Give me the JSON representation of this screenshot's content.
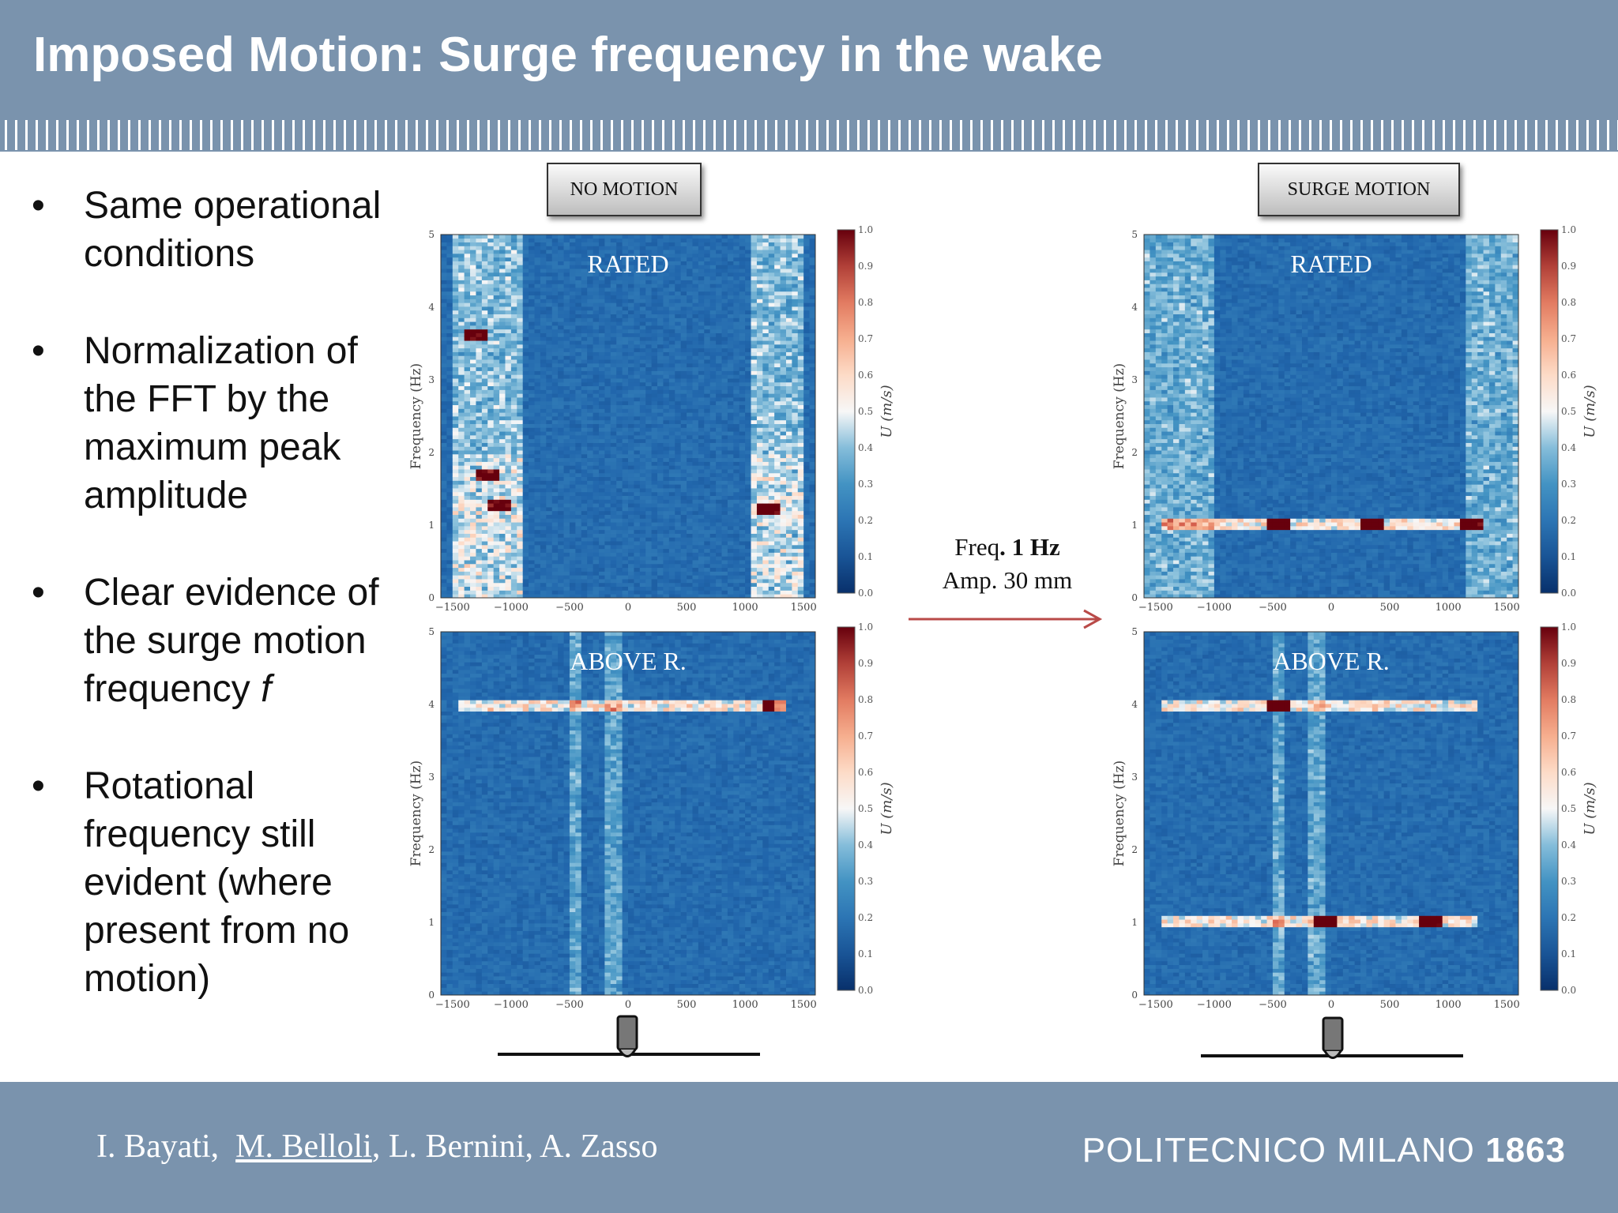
{
  "slide": {
    "title": "Imposed Motion: Surge frequency in the wake",
    "bullets": [
      {
        "text": "Same operational conditions"
      },
      {
        "text": "Normalization of the FFT by the maximum peak amplitude"
      },
      {
        "text": "Clear evidence of the surge motion frequency ",
        "italic": "f"
      },
      {
        "text": "Rotational frequency still evident (where present from no motion)"
      }
    ],
    "motion_labels": {
      "left": "NO MOTION",
      "right": "SURGE MOTION"
    },
    "arrow_text": {
      "line1_pre": "Freq",
      "line1_bold": ". 1 Hz",
      "line2": "Amp. 30 mm"
    },
    "footer": {
      "author1": "I. Bayati,",
      "author2": "M. Belloli",
      "author_rest": ", L. Bernini, A. Zasso",
      "logo_word": "POLITECNICO MILANO",
      "logo_year": "1863"
    },
    "colors": {
      "header": "#7a93ad",
      "arrow": "#b94a48"
    }
  },
  "chart_data": [
    {
      "type": "heatmap",
      "id": "no-motion-rated",
      "title": "RATED",
      "xlabel": "",
      "ylabel": "Frequency (Hz)",
      "colorbar_label": "U (m/s)",
      "xlim": [
        -1600,
        1600
      ],
      "ylim": [
        0,
        5
      ],
      "xticks": [
        "−1500",
        "−1000",
        "−500",
        "0",
        "500",
        "1000",
        "1500"
      ],
      "yticks": [
        "0",
        "1",
        "2",
        "3",
        "4",
        "5"
      ],
      "cticks": [
        "0.0",
        "0.1",
        "0.2",
        "0.3",
        "0.4",
        "0.5",
        "0.6",
        "0.7",
        "0.8",
        "0.9",
        "1.0"
      ],
      "clim": [
        0,
        1
      ],
      "high_bands_x": [
        [
          -1500,
          -900
        ],
        [
          1050,
          1500
        ]
      ],
      "peaks": [
        [
          -1300,
          3.6
        ],
        [
          -1200,
          1.7
        ],
        [
          -1100,
          1.3
        ],
        [
          1200,
          1.2
        ]
      ]
    },
    {
      "type": "heatmap",
      "id": "no-motion-above",
      "title": "ABOVE R.",
      "xlabel": "",
      "ylabel": "Frequency (Hz)",
      "colorbar_label": "U (m/s)",
      "xlim": [
        -1600,
        1600
      ],
      "ylim": [
        0,
        5
      ],
      "xticks": [
        "−1500",
        "−1000",
        "−500",
        "0",
        "500",
        "1000",
        "1500"
      ],
      "yticks": [
        "0",
        "1",
        "2",
        "3",
        "4",
        "5"
      ],
      "cticks": [
        "0.0",
        "0.1",
        "0.2",
        "0.3",
        "0.4",
        "0.5",
        "0.6",
        "0.7",
        "0.8",
        "0.9",
        "1.0"
      ],
      "clim": [
        0,
        1
      ],
      "line_frequency": 4.0,
      "peaks": [
        [
          1250,
          4.0
        ]
      ]
    },
    {
      "type": "heatmap",
      "id": "surge-rated",
      "title": "RATED",
      "xlabel": "",
      "ylabel": "Frequency (Hz)",
      "colorbar_label": "U (m/s)",
      "xlim": [
        -1600,
        1600
      ],
      "ylim": [
        0,
        5
      ],
      "xticks": [
        "−1500",
        "−1000",
        "−500",
        "0",
        "500",
        "1000",
        "1500"
      ],
      "yticks": [
        "0",
        "1",
        "2",
        "3",
        "4",
        "5"
      ],
      "cticks": [
        "0.0",
        "0.1",
        "0.2",
        "0.3",
        "0.4",
        "0.5",
        "0.6",
        "0.7",
        "0.8",
        "0.9",
        "1.0"
      ],
      "clim": [
        0,
        1
      ],
      "line_frequency": 1.0,
      "peaks": [
        [
          -450,
          1.0
        ],
        [
          350,
          1.0
        ],
        [
          1200,
          1.0
        ]
      ]
    },
    {
      "type": "heatmap",
      "id": "surge-above",
      "title": "ABOVE R.",
      "xlabel": "",
      "ylabel": "Frequency (Hz)",
      "colorbar_label": "U (m/s)",
      "xlim": [
        -1600,
        1600
      ],
      "ylim": [
        0,
        5
      ],
      "xticks": [
        "−1500",
        "−1000",
        "−500",
        "0",
        "500",
        "1000",
        "1500"
      ],
      "yticks": [
        "0",
        "1",
        "2",
        "3",
        "4",
        "5"
      ],
      "cticks": [
        "0.0",
        "0.1",
        "0.2",
        "0.3",
        "0.4",
        "0.5",
        "0.6",
        "0.7",
        "0.8",
        "0.9",
        "1.0"
      ],
      "clim": [
        0,
        1
      ],
      "line_frequency": 1.0,
      "second_line_frequency": 4.0,
      "peaks": [
        [
          -50,
          1.0
        ],
        [
          -450,
          4.0
        ],
        [
          850,
          1.0
        ]
      ]
    }
  ]
}
